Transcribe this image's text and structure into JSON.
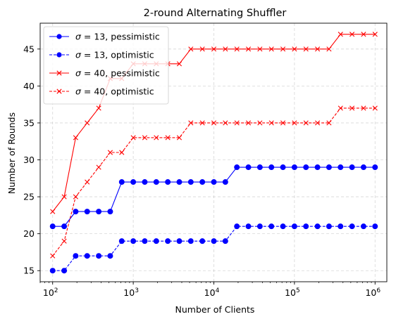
{
  "chart_data": {
    "type": "line",
    "title": "2-round Alternating Shuffler",
    "xlabel": "Number of Clients",
    "ylabel": "Number of Rounds",
    "xscale": "log",
    "xlim": [
      70,
      1400000
    ],
    "ylim": [
      13.5,
      48.5
    ],
    "x_ticks": [
      100,
      1000,
      10000,
      100000,
      1000000
    ],
    "x_tick_labels": [
      {
        "base": "10",
        "exp": "2"
      },
      {
        "base": "10",
        "exp": "3"
      },
      {
        "base": "10",
        "exp": "4"
      },
      {
        "base": "10",
        "exp": "5"
      },
      {
        "base": "10",
        "exp": "6"
      }
    ],
    "y_ticks": [
      15,
      20,
      25,
      30,
      35,
      40,
      45
    ],
    "grid": true,
    "legend_position": "top-left",
    "x": [
      100,
      139,
      193,
      268,
      373,
      518,
      720,
      1000,
      1389,
      1931,
      2683,
      3728,
      5179,
      7197,
      10000,
      13895,
      19307,
      26827,
      37276,
      51795,
      71969,
      100000,
      138950,
      193070,
      268270,
      372760,
      517950,
      719690,
      1000000
    ],
    "series": [
      {
        "name": "σ = 13, pessimistic",
        "legend_prefix": "σ = 13",
        "legend_suffix": ", pessimistic",
        "color": "#0000ff",
        "linestyle": "solid",
        "marker": "circle",
        "values": [
          21,
          21,
          23,
          23,
          23,
          23,
          27,
          27,
          27,
          27,
          27,
          27,
          27,
          27,
          27,
          27,
          29,
          29,
          29,
          29,
          29,
          29,
          29,
          29,
          29,
          29,
          29,
          29,
          29
        ]
      },
      {
        "name": "σ = 13, optimistic",
        "legend_prefix": "σ = 13",
        "legend_suffix": ", optimistic",
        "color": "#0000ff",
        "linestyle": "dashed",
        "marker": "circle",
        "values": [
          15,
          15,
          17,
          17,
          17,
          17,
          19,
          19,
          19,
          19,
          19,
          19,
          19,
          19,
          19,
          19,
          21,
          21,
          21,
          21,
          21,
          21,
          21,
          21,
          21,
          21,
          21,
          21,
          21
        ]
      },
      {
        "name": "σ = 40, pessimistic",
        "legend_prefix": "σ = 40",
        "legend_suffix": ", pessimistic",
        "color": "#ff0000",
        "linestyle": "solid",
        "marker": "x",
        "values": [
          23,
          25,
          33,
          35,
          37,
          41,
          41,
          43,
          43,
          43,
          43,
          43,
          45,
          45,
          45,
          45,
          45,
          45,
          45,
          45,
          45,
          45,
          45,
          45,
          45,
          47,
          47,
          47,
          47
        ]
      },
      {
        "name": "σ = 40, optimistic",
        "legend_prefix": "σ = 40",
        "legend_suffix": ", optimistic",
        "color": "#ff0000",
        "linestyle": "dashed",
        "marker": "x",
        "values": [
          17,
          19,
          25,
          27,
          29,
          31,
          31,
          33,
          33,
          33,
          33,
          33,
          35,
          35,
          35,
          35,
          35,
          35,
          35,
          35,
          35,
          35,
          35,
          35,
          35,
          37,
          37,
          37,
          37
        ]
      }
    ]
  }
}
